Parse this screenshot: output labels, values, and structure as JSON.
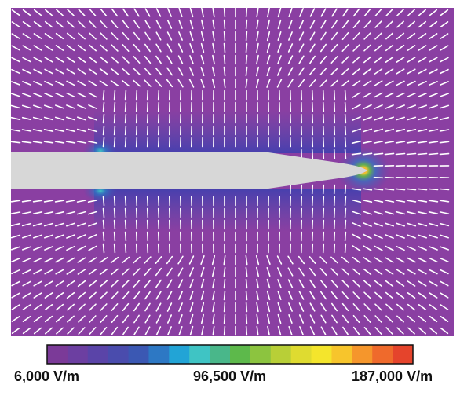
{
  "colors": {
    "background_field": "#8a3fa2",
    "electrode": "#d7d7d7",
    "field_arrow": "#ffffff",
    "colorbar_stops": [
      "#7b3a98",
      "#6c3fa1",
      "#5a44a8",
      "#4a4cad",
      "#3b58b3",
      "#2d78c4",
      "#22a4d6",
      "#3fc4c4",
      "#49b78a",
      "#5db94b",
      "#8cc43f",
      "#b8cf37",
      "#dfdb30",
      "#f4e52c",
      "#f7c52c",
      "#f5962c",
      "#ef6a2c",
      "#e5442c"
    ]
  },
  "legend": {
    "min_label": "6,000 V/m",
    "mid_label": "96,500 V/m",
    "max_label": "187,000 V/m",
    "min_value": 6000,
    "mid_value": 96500,
    "max_value": 187000
  }
}
